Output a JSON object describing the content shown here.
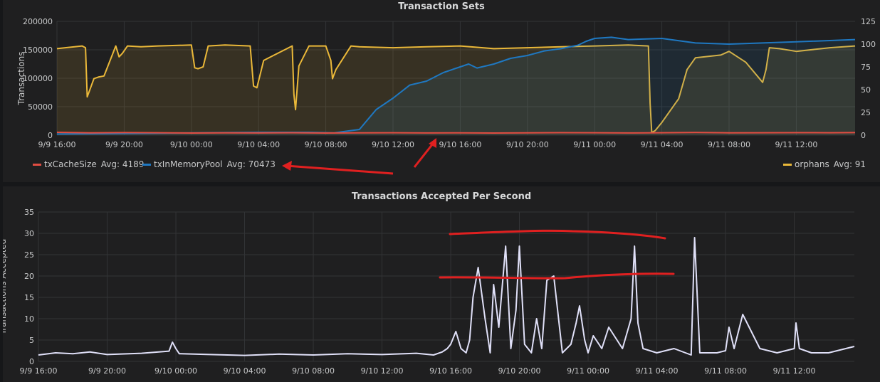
{
  "colors": {
    "txCacheSize": "#e24d42",
    "txInMemoryPool": "#1f78c1",
    "orphans": "#eab839",
    "accepted": "#e0e0f8",
    "annotation": "#e02020"
  },
  "chart_data": [
    {
      "type": "line",
      "title": "Transaction Sets",
      "ylabel": "Transactions",
      "ylim": [
        0,
        200000
      ],
      "y2lim": [
        0,
        125
      ],
      "yticks": [
        "0",
        "50000",
        "100000",
        "150000",
        "200000"
      ],
      "y2ticks": [
        "0",
        "25",
        "50",
        "75",
        "100",
        "125"
      ],
      "xlim_hours": [
        0,
        47.5
      ],
      "xticks": [
        "9/9 16:00",
        "9/9 20:00",
        "9/10 00:00",
        "9/10 04:00",
        "9/10 08:00",
        "9/10 12:00",
        "9/10 16:00",
        "9/10 20:00",
        "9/11 00:00",
        "9/11 04:00",
        "9/11 08:00",
        "9/11 12:00"
      ],
      "grid": true,
      "series": [
        {
          "name": "txCacheSize",
          "axis": "left",
          "avg_label": "Avg: 4189",
          "x": [
            0,
            2,
            4,
            6,
            8,
            10,
            12,
            14,
            16,
            18,
            20,
            22,
            24,
            26,
            28,
            30,
            32,
            34,
            36,
            38,
            40,
            42,
            44,
            46,
            47.5
          ],
          "y": [
            5000,
            4000,
            4500,
            4200,
            3800,
            4100,
            3900,
            4300,
            3700,
            4000,
            4200,
            3900,
            4100,
            3800,
            4000,
            4400,
            4200,
            3900,
            4300,
            4600,
            4100,
            4200,
            4400,
            4300,
            4500
          ]
        },
        {
          "name": "txInMemoryPool",
          "axis": "left",
          "avg_label": "Avg: 70473",
          "x": [
            0,
            4,
            8,
            12,
            15,
            16.5,
            18,
            19,
            20,
            21,
            22,
            23,
            24,
            24.5,
            25,
            26,
            27,
            28,
            29,
            30,
            31,
            31.5,
            32,
            33,
            34,
            36,
            38,
            40,
            44,
            47.5
          ],
          "y": [
            2000,
            3000,
            4000,
            5000,
            5000,
            4000,
            10000,
            45000,
            65000,
            88000,
            95000,
            110000,
            120000,
            125000,
            118000,
            125000,
            135000,
            140000,
            148000,
            152000,
            158000,
            165000,
            170000,
            172000,
            168000,
            170000,
            162000,
            160000,
            164000,
            168000
          ]
        },
        {
          "name": "orphans",
          "axis": "right",
          "avg_label": "Avg: 91",
          "x": [
            0,
            1.5,
            1.7,
            1.8,
            2.2,
            2.5,
            2.8,
            3.5,
            3.7,
            3.9,
            4.2,
            5,
            6,
            8,
            8.2,
            8.4,
            8.7,
            9,
            10,
            11.5,
            11.7,
            11.9,
            12.3,
            14,
            14.1,
            14.2,
            14.4,
            15,
            16,
            16.3,
            16.4,
            16.6,
            17.5,
            18,
            20,
            22,
            24,
            26,
            28,
            30,
            32,
            34,
            35.2,
            35.3,
            35.4,
            35.6,
            36,
            37,
            37.5,
            38,
            39.5,
            40,
            41,
            42,
            42.2,
            42.4,
            43,
            44,
            46,
            47.5
          ],
          "y": [
            95,
            98,
            96,
            42,
            62,
            64,
            65,
            98,
            86,
            90,
            98,
            97,
            98,
            99,
            74,
            73,
            75,
            98,
            99,
            98,
            54,
            52,
            82,
            98,
            45,
            28,
            76,
            98,
            98,
            82,
            62,
            72,
            98,
            97,
            96,
            97,
            98,
            95,
            96,
            97,
            98,
            99,
            98,
            35,
            3,
            5,
            14,
            40,
            72,
            85,
            88,
            92,
            80,
            58,
            72,
            96,
            95,
            92,
            96,
            98
          ]
        }
      ]
    },
    {
      "type": "line",
      "title": "Transactions Accepted Per Second",
      "ylabel": "Transactions Accepted",
      "ylim": [
        0,
        35
      ],
      "yticks": [
        "0",
        "5",
        "10",
        "15",
        "20",
        "25",
        "30",
        "35"
      ],
      "xlim_hours": [
        0,
        47.5
      ],
      "xticks": [
        "9/9 16:00",
        "9/9 20:00",
        "9/10 00:00",
        "9/10 04:00",
        "9/10 08:00",
        "9/10 12:00",
        "9/10 16:00",
        "9/10 20:00",
        "9/11 00:00",
        "9/11 04:00",
        "9/11 08:00",
        "9/11 12:00"
      ],
      "grid": true,
      "series": [
        {
          "name": "",
          "x": [
            0,
            1,
            2,
            3,
            4,
            6,
            7.6,
            7.8,
            8,
            8.2,
            10,
            12,
            14,
            16,
            18,
            20,
            22,
            23,
            23.5,
            23.8,
            24.0,
            24.3,
            24.6,
            24.9,
            25.1,
            25.3,
            25.6,
            26.0,
            26.3,
            26.5,
            26.8,
            27.2,
            27.5,
            27.8,
            28.0,
            28.3,
            28.7,
            29.0,
            29.3,
            29.6,
            30.0,
            30.5,
            31.0,
            31.3,
            31.5,
            31.8,
            32.0,
            32.3,
            32.8,
            33.2,
            34.0,
            34.5,
            34.7,
            34.9,
            35.2,
            36,
            37,
            38,
            38.2,
            38.5,
            39.5,
            40,
            40.2,
            40.5,
            41,
            42,
            43,
            44,
            44.1,
            44.3,
            45,
            46,
            47,
            47.5
          ],
          "y": [
            1.5,
            2,
            1.8,
            2.2,
            1.6,
            1.9,
            2.4,
            4.5,
            3,
            1.8,
            1.6,
            1.4,
            1.7,
            1.5,
            1.8,
            1.6,
            1.9,
            1.5,
            2.2,
            3,
            4,
            7,
            3,
            2,
            5,
            15,
            22,
            10,
            2,
            18,
            8,
            27,
            3,
            12,
            27,
            4,
            2,
            10,
            3,
            19,
            20,
            2,
            4,
            9,
            13,
            5,
            2,
            6,
            3,
            8,
            3,
            10,
            27,
            9,
            3,
            2,
            3,
            1.5,
            29,
            2,
            2,
            2.5,
            8,
            3,
            11,
            3,
            2,
            3,
            9,
            3,
            2,
            2,
            3,
            3.5
          ]
        }
      ]
    }
  ],
  "legend": {
    "txCacheSize": {
      "label": "txCacheSize",
      "avg": "Avg: 4189"
    },
    "txInMemoryPool": {
      "label": "txInMemoryPool",
      "avg": "Avg: 70473"
    },
    "orphans": {
      "label": "orphans",
      "avg": "Avg: 91"
    }
  }
}
